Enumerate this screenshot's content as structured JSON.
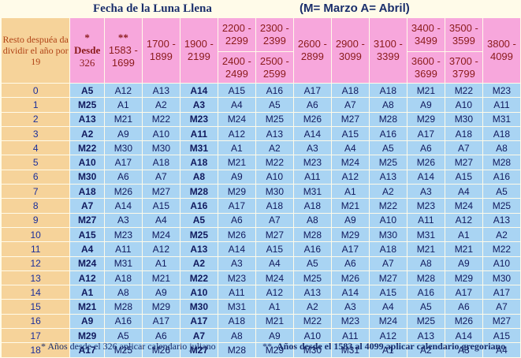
{
  "title": "Fecha de la Luna Llena",
  "legend": "(M= Marzo A= Abril)",
  "header": {
    "resto": "Resto despuéa da dividir el año por 19",
    "col_since_mark": "*",
    "col_since_label": "Desde",
    "col_since_year": "326",
    "col_greg_mark": "**",
    "col_greg_range": "1583 - 1699",
    "ranges_single": [
      "1700 - 1899",
      "1900 - 2199"
    ],
    "ranges_double_a": [
      "2200 - 2299",
      "2300 - 2399"
    ],
    "ranges_double_b": [
      "2400 - 2499",
      "2500 - 2599"
    ],
    "ranges_single2": [
      "2600 - 2899",
      "2900 - 3099",
      "3100 - 3399"
    ],
    "ranges_double2_a": [
      "3400 - 3499",
      "3500 - 3599"
    ],
    "ranges_double2_b": [
      "3600 - 3699",
      "3700 - 3799"
    ],
    "range_last": "3800 - 4099"
  },
  "rows": [
    {
      "r": "0",
      "v": [
        "A5",
        "A12",
        "A13",
        "A14",
        "A15",
        "A16",
        "A17",
        "A18",
        "A18",
        "M21",
        "M22",
        "M23"
      ]
    },
    {
      "r": "1",
      "v": [
        "M25",
        "A1",
        "A2",
        "A3",
        "A4",
        "A5",
        "A6",
        "A7",
        "A8",
        "A9",
        "A10",
        "A11"
      ]
    },
    {
      "r": "2",
      "v": [
        "A13",
        "M21",
        "M22",
        "M23",
        "M24",
        "M25",
        "M26",
        "M27",
        "M28",
        "M29",
        "M30",
        "M31"
      ]
    },
    {
      "r": "3",
      "v": [
        "A2",
        "A9",
        "A10",
        "A11",
        "A12",
        "A13",
        "A14",
        "A15",
        "A16",
        "A17",
        "A18",
        "A18"
      ]
    },
    {
      "r": "4",
      "v": [
        "M22",
        "M30",
        "M30",
        "M31",
        "A1",
        "A2",
        "A3",
        "A4",
        "A5",
        "A6",
        "A7",
        "A8"
      ]
    },
    {
      "r": "5",
      "v": [
        "A10",
        "A17",
        "A18",
        "A18",
        "M21",
        "M22",
        "M23",
        "M24",
        "M25",
        "M26",
        "M27",
        "M28"
      ]
    },
    {
      "r": "6",
      "v": [
        "M30",
        "A6",
        "A7",
        "A8",
        "A9",
        "A10",
        "A11",
        "A12",
        "A13",
        "A14",
        "A15",
        "A16"
      ]
    },
    {
      "r": "7",
      "v": [
        "A18",
        "M26",
        "M27",
        "M28",
        "M29",
        "M30",
        "M31",
        "A1",
        "A2",
        "A3",
        "A4",
        "A5"
      ]
    },
    {
      "r": "8",
      "v": [
        "A7",
        "A14",
        "A15",
        "A16",
        "A17",
        "A18",
        "A18",
        "M21",
        "M22",
        "M23",
        "M24",
        "M25"
      ]
    },
    {
      "r": "9",
      "v": [
        "M27",
        "A3",
        "A4",
        "A5",
        "A6",
        "A7",
        "A8",
        "A9",
        "A10",
        "A11",
        "A12",
        "A13"
      ]
    },
    {
      "r": "10",
      "v": [
        "A15",
        "M23",
        "M24",
        "M25",
        "M26",
        "M27",
        "M28",
        "M29",
        "M30",
        "M31",
        "A1",
        "A2"
      ]
    },
    {
      "r": "11",
      "v": [
        "A4",
        "A11",
        "A12",
        "A13",
        "A14",
        "A15",
        "A16",
        "A17",
        "A18",
        "M21",
        "M21",
        "M22"
      ]
    },
    {
      "r": "12",
      "v": [
        "M24",
        "M31",
        "A1",
        "A2",
        "A3",
        "A4",
        "A5",
        "A6",
        "A7",
        "A8",
        "A9",
        "A10"
      ]
    },
    {
      "r": "13",
      "v": [
        "A12",
        "A18",
        "M21",
        "M22",
        "M23",
        "M24",
        "M25",
        "M26",
        "M27",
        "M28",
        "M29",
        "M30"
      ]
    },
    {
      "r": "14",
      "v": [
        "A1",
        "A8",
        "A9",
        "A10",
        "A11",
        "A12",
        "A13",
        "A14",
        "A15",
        "A16",
        "A17",
        "A17"
      ]
    },
    {
      "r": "15",
      "v": [
        "M21",
        "M28",
        "M29",
        "M30",
        "M31",
        "A1",
        "A2",
        "A3",
        "A4",
        "A5",
        "A6",
        "A7"
      ]
    },
    {
      "r": "16",
      "v": [
        "A9",
        "A16",
        "A17",
        "A17",
        "A18",
        "M21",
        "M22",
        "M23",
        "M24",
        "M25",
        "M26",
        "M27"
      ]
    },
    {
      "r": "17",
      "v": [
        "M29",
        "A5",
        "A6",
        "A7",
        "A8",
        "A9",
        "A10",
        "A11",
        "A12",
        "A13",
        "A14",
        "A15"
      ]
    },
    {
      "r": "18",
      "v": [
        "A17",
        "M25",
        "M26",
        "M27",
        "M28",
        "M29",
        "M30",
        "M31",
        "A1",
        "A2",
        "A3",
        "A4"
      ]
    }
  ],
  "bold_columns": [
    0,
    3
  ],
  "footer": {
    "note1": "*    Años desde el 326 aplicar calendario juliano",
    "note2_mark": "**",
    "note2_text": "Años desde el 1583 al 4099 aplicar calendario gregoriano"
  },
  "colors": {
    "header_pink": "#f7a7dc",
    "index_orange": "#f6d39a",
    "cell_blue": "#a9d4f3",
    "text_navy": "#1a2e6b"
  }
}
